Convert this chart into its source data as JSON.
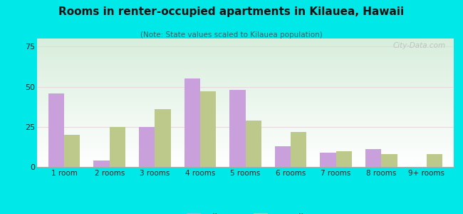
{
  "title": "Rooms in renter-occupied apartments in Kilauea, Hawaii",
  "subtitle": "(Note: State values scaled to Kilauea population)",
  "categories": [
    "1 room",
    "2 rooms",
    "3 rooms",
    "4 rooms",
    "5 rooms",
    "6 rooms",
    "7 rooms",
    "8 rooms",
    "9+ rooms"
  ],
  "kilauea_values": [
    46,
    4,
    25,
    55,
    48,
    13,
    9,
    11,
    0
  ],
  "hawaii_values": [
    20,
    25,
    36,
    47,
    29,
    22,
    10,
    8,
    8
  ],
  "kilauea_color": "#c9a0dc",
  "hawaii_color": "#bdc98a",
  "background_outer": "#00e8e8",
  "ylim": [
    0,
    80
  ],
  "yticks": [
    0,
    25,
    50,
    75
  ],
  "bar_width": 0.35,
  "legend_kilauea": "Kilauea",
  "legend_hawaii": "Hawaii",
  "watermark": "City-Data.com",
  "title_color": "#111111",
  "subtitle_color": "#336666",
  "tick_label_color": "#222222"
}
